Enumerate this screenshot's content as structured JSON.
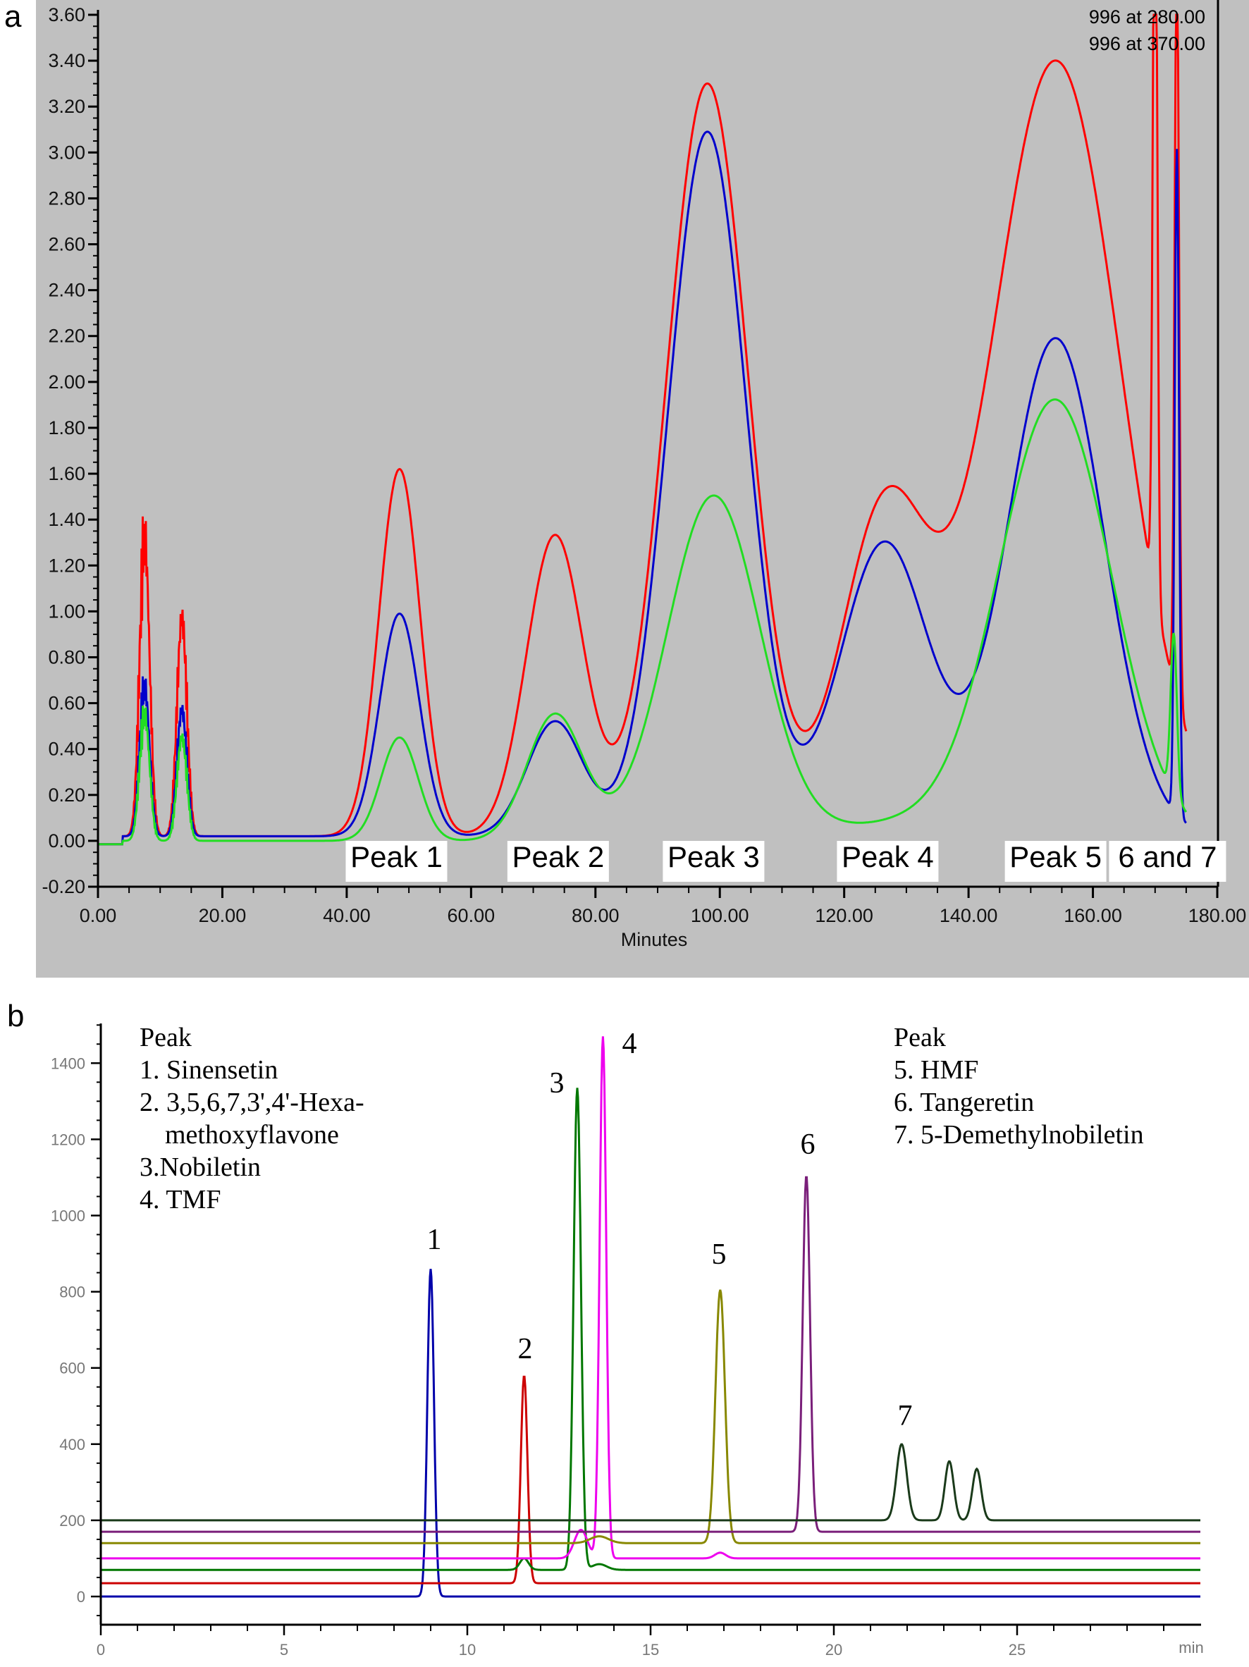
{
  "chart_data": [
    {
      "panel": "a",
      "type": "line",
      "title": "",
      "xlabel": "Minutes",
      "ylabel": "",
      "xlim": [
        0,
        180
      ],
      "ylim": [
        -0.2,
        3.6
      ],
      "grid": false,
      "background": "#c0c0c0",
      "xticks": [
        "0.00",
        "20.00",
        "40.00",
        "60.00",
        "80.00",
        "100.00",
        "120.00",
        "140.00",
        "160.00",
        "180.00"
      ],
      "yticks": [
        "-0.20",
        "0.00",
        "0.20",
        "0.40",
        "0.60",
        "0.80",
        "1.00",
        "1.20",
        "1.40",
        "1.60",
        "1.80",
        "2.00",
        "2.20",
        "2.40",
        "2.60",
        "2.80",
        "3.00",
        "3.20",
        "3.40",
        "3.60"
      ],
      "legend_position": "top-right",
      "legend": [
        {
          "text": "996  at 280.00",
          "color": "#0000cc"
        },
        {
          "text": "996  at 370.00",
          "color": "#22dd22"
        }
      ],
      "peak_labels": [
        "Peak 1",
        "Peak 2",
        "Peak 3",
        "Peak 4",
        "Peak 5",
        "6 and 7"
      ],
      "peak_label_positions_min": [
        48,
        74,
        99,
        127,
        154,
        172
      ],
      "series": [
        {
          "name": "red trace",
          "color": "#ff0000",
          "peaks": [
            [
              7.5,
              1.3,
              0.8
            ],
            [
              13.5,
              0.95,
              0.8
            ],
            [
              48.5,
              1.6,
              3.3
            ],
            [
              73.5,
              1.31,
              4.6
            ],
            [
              98,
              3.28,
              6.6
            ],
            [
              126.5,
              1.4,
              7.0
            ],
            [
              154,
              3.38,
              10.5
            ],
            [
              170,
              3.5,
              0.35
            ],
            [
              173.5,
              3.3,
              0.35
            ]
          ],
          "baseline": 0.02
        },
        {
          "name": "996 at 280.00",
          "color": "#0000cc",
          "peaks": [
            [
              7.5,
              0.65,
              0.8
            ],
            [
              13.5,
              0.55,
              0.8
            ],
            [
              48.5,
              0.97,
              3.2
            ],
            [
              73.5,
              0.5,
              4.5
            ],
            [
              98,
              3.07,
              6.3
            ],
            [
              126.5,
              1.28,
              7.2
            ],
            [
              154,
              2.17,
              7.8
            ],
            [
              173.5,
              2.9,
              0.35
            ]
          ],
          "baseline": 0.02
        },
        {
          "name": "996 at 370.00",
          "color": "#22dd22",
          "peaks": [
            [
              7.5,
              0.55,
              0.8
            ],
            [
              13.5,
              0.45,
              0.8
            ],
            [
              48.5,
              0.45,
              3.0
            ],
            [
              73.5,
              0.55,
              4.5
            ],
            [
              99,
              1.5,
              7.5
            ],
            [
              132,
              0.08,
              14
            ],
            [
              154,
              1.9,
              9.0
            ],
            [
              173,
              0.7,
              0.5
            ]
          ],
          "baseline": 0.0
        }
      ]
    },
    {
      "panel": "b",
      "type": "line",
      "title": "",
      "xlabel": "min",
      "ylabel": "",
      "xlim": [
        0,
        30
      ],
      "ylim": [
        -80,
        1500
      ],
      "grid": false,
      "xticks": [
        "0",
        "5",
        "10",
        "15",
        "20",
        "25"
      ],
      "yticks": [
        "0",
        "200",
        "400",
        "600",
        "800",
        "1000",
        "1200",
        "1400"
      ],
      "legend_left": {
        "heading": "Peak",
        "lines": [
          "1. Sinensetin",
          "2. 3,5,6,7,3',4'-Hexa-",
          "methoxyflavone",
          "3.Nobiletin",
          "4. TMF"
        ]
      },
      "legend_right": {
        "heading": "Peak",
        "lines": [
          "5. HMF",
          "6. Tangeretin",
          "7. 5-Demethylnobiletin"
        ]
      },
      "peak_numbers": [
        "1",
        "2",
        "3",
        "4",
        "5",
        "6",
        "7"
      ],
      "series": [
        {
          "name": "trace 1 (Sinensetin)",
          "color": "#0000aa",
          "offset": 0,
          "peaks": [
            [
              9.0,
              860,
              0.09
            ]
          ]
        },
        {
          "name": "trace 2 (Hexamethoxyflavone)",
          "color": "#cc0000",
          "offset": 35,
          "peaks": [
            [
              11.55,
              545,
              0.09
            ]
          ]
        },
        {
          "name": "trace 3 (Nobiletin)",
          "color": "#007700",
          "offset": 70,
          "peaks": [
            [
              11.55,
              30,
              0.12
            ],
            [
              13.0,
              1265,
              0.1
            ],
            [
              13.6,
              15,
              0.2
            ]
          ]
        },
        {
          "name": "trace 4 (TMF)",
          "color": "#ee00ee",
          "offset": 100,
          "peaks": [
            [
              13.1,
              75,
              0.18
            ],
            [
              13.7,
              1370,
              0.09
            ],
            [
              16.9,
              15,
              0.15
            ]
          ]
        },
        {
          "name": "trace 5 (HMF)",
          "color": "#888800",
          "offset": 140,
          "peaks": [
            [
              13.6,
              18,
              0.25
            ],
            [
              16.9,
              665,
              0.13
            ]
          ]
        },
        {
          "name": "trace 6 (Tangeretin)",
          "color": "#7a1f7a",
          "offset": 170,
          "peaks": [
            [
              19.25,
              935,
              0.1
            ]
          ]
        },
        {
          "name": "trace 7 (5-Demethylnobiletin)",
          "color": "#1a3a1a",
          "offset": 200,
          "peaks": [
            [
              21.85,
              200,
              0.14
            ],
            [
              23.15,
              155,
              0.12
            ],
            [
              23.9,
              135,
              0.12
            ]
          ]
        }
      ]
    }
  ],
  "panels": {
    "a_letter": "a",
    "b_letter": "b"
  }
}
